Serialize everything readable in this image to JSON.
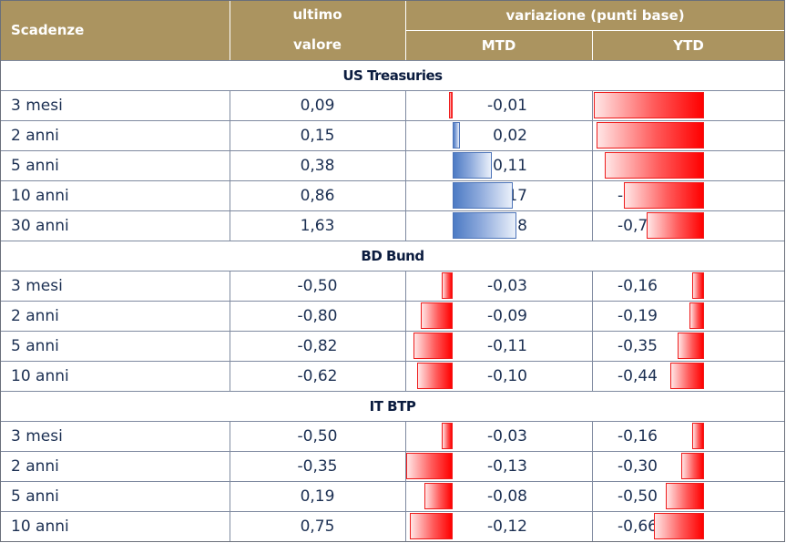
{
  "header": {
    "scadenze": "Scadenze",
    "ultimo_line1": "ultimo",
    "ultimo_line2": "valore",
    "variazione": "variazione (punti base)",
    "mtd": "MTD",
    "ytd": "YTD"
  },
  "colors": {
    "header_bg": "#ab9460",
    "negative_bar": "#ff0000",
    "positive_bar": "#4d7bc4"
  },
  "sections": [
    {
      "title": "US Treasuries",
      "rows": [
        {
          "label": "3 mesi",
          "value": "0,09",
          "mtd": "-0,01",
          "ytd": "-1,46",
          "mtd_num": -0.01,
          "ytd_num": -1.46
        },
        {
          "label": "2 anni",
          "value": "0,15",
          "mtd": "0,02",
          "ytd": "-1,42",
          "mtd_num": 0.02,
          "ytd_num": -1.42
        },
        {
          "label": "5 anni",
          "value": "0,38",
          "mtd": "0,11",
          "ytd": "-1,31",
          "mtd_num": 0.11,
          "ytd_num": -1.31
        },
        {
          "label": "10 anni",
          "value": "0,86",
          "mtd": "0,17",
          "ytd": "-1,06",
          "mtd_num": 0.17,
          "ytd_num": -1.06
        },
        {
          "label": "30 anni",
          "value": "1,63",
          "mtd": "0,18",
          "ytd": "-0,76",
          "mtd_num": 0.18,
          "ytd_num": -0.76
        }
      ]
    },
    {
      "title": "BD Bund",
      "rows": [
        {
          "label": "3 mesi",
          "value": "-0,50",
          "mtd": "-0,03",
          "ytd": "-0,16",
          "mtd_num": -0.03,
          "ytd_num": -0.16
        },
        {
          "label": "2 anni",
          "value": "-0,80",
          "mtd": "-0,09",
          "ytd": "-0,19",
          "mtd_num": -0.09,
          "ytd_num": -0.19
        },
        {
          "label": "5 anni",
          "value": "-0,82",
          "mtd": "-0,11",
          "ytd": "-0,35",
          "mtd_num": -0.11,
          "ytd_num": -0.35
        },
        {
          "label": "10 anni",
          "value": "-0,62",
          "mtd": "-0,10",
          "ytd": "-0,44",
          "mtd_num": -0.1,
          "ytd_num": -0.44
        }
      ]
    },
    {
      "title": "IT BTP",
      "rows": [
        {
          "label": "3 mesi",
          "value": "-0,50",
          "mtd": "-0,03",
          "ytd": "-0,16",
          "mtd_num": -0.03,
          "ytd_num": -0.16
        },
        {
          "label": "2 anni",
          "value": "-0,35",
          "mtd": "-0,13",
          "ytd": "-0,30",
          "mtd_num": -0.13,
          "ytd_num": -0.3
        },
        {
          "label": "5 anni",
          "value": "0,19",
          "mtd": "-0,08",
          "ytd": "-0,50",
          "mtd_num": -0.08,
          "ytd_num": -0.5
        },
        {
          "label": "10 anni",
          "value": "0,75",
          "mtd": "-0,12",
          "ytd": "-0,66",
          "mtd_num": -0.12,
          "ytd_num": -0.66
        }
      ]
    }
  ]
}
